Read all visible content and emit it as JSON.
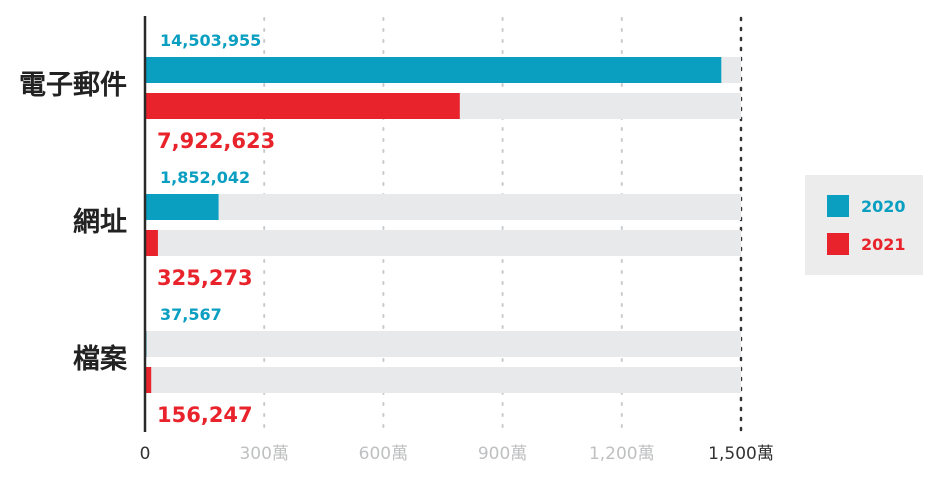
{
  "chart_data": {
    "type": "bar",
    "orientation": "horizontal",
    "categories": [
      "電子郵件",
      "網址",
      "檔案"
    ],
    "series": [
      {
        "name": "2020",
        "color": "#0a9fc1",
        "values": [
          14503955,
          1852042,
          37567
        ],
        "value_labels": [
          "14,503,955",
          "1,852,042",
          "37,567"
        ]
      },
      {
        "name": "2021",
        "color": "#e8232b",
        "values": [
          7922623,
          325273,
          156247
        ],
        "value_labels": [
          "7,922,623",
          "325,273",
          "156,247"
        ]
      }
    ],
    "xlim": [
      0,
      15000000
    ],
    "x_ticks": [
      0,
      3000000,
      6000000,
      9000000,
      12000000,
      15000000
    ],
    "x_tick_labels": [
      "0",
      "300萬",
      "600萬",
      "900萬",
      "1,200萬",
      "1,500萬"
    ],
    "track_color": "#e8e9ea",
    "grid": true,
    "legend_position": "right"
  }
}
